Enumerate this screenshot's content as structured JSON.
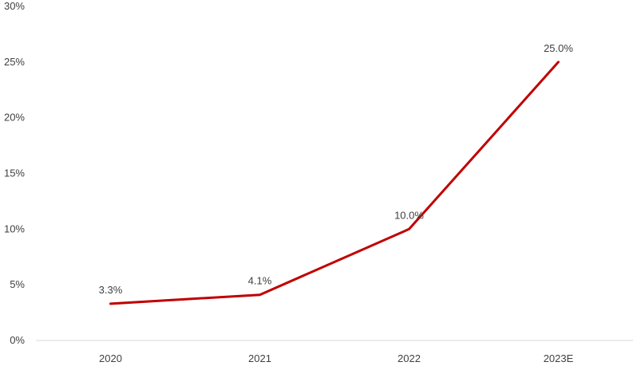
{
  "chart_data": {
    "type": "line",
    "title": "",
    "xlabel": "",
    "ylabel": "",
    "categories": [
      "2020",
      "2021",
      "2022",
      "2023E"
    ],
    "series": [
      {
        "values": [
          3.3,
          4.1,
          10.0,
          25.0
        ],
        "color": "#c00000"
      }
    ],
    "data_labels": [
      "3.3%",
      "4.1%",
      "10.0%",
      "25.0%"
    ],
    "ylim": [
      0,
      30
    ],
    "y_ticks": [
      0,
      5,
      10,
      15,
      20,
      25,
      30
    ],
    "y_tick_labels": [
      "0%",
      "5%",
      "10%",
      "15%",
      "20%",
      "25%",
      "30%"
    ],
    "grid": false,
    "legend": "none",
    "axis_color": "#d9d9d9"
  }
}
